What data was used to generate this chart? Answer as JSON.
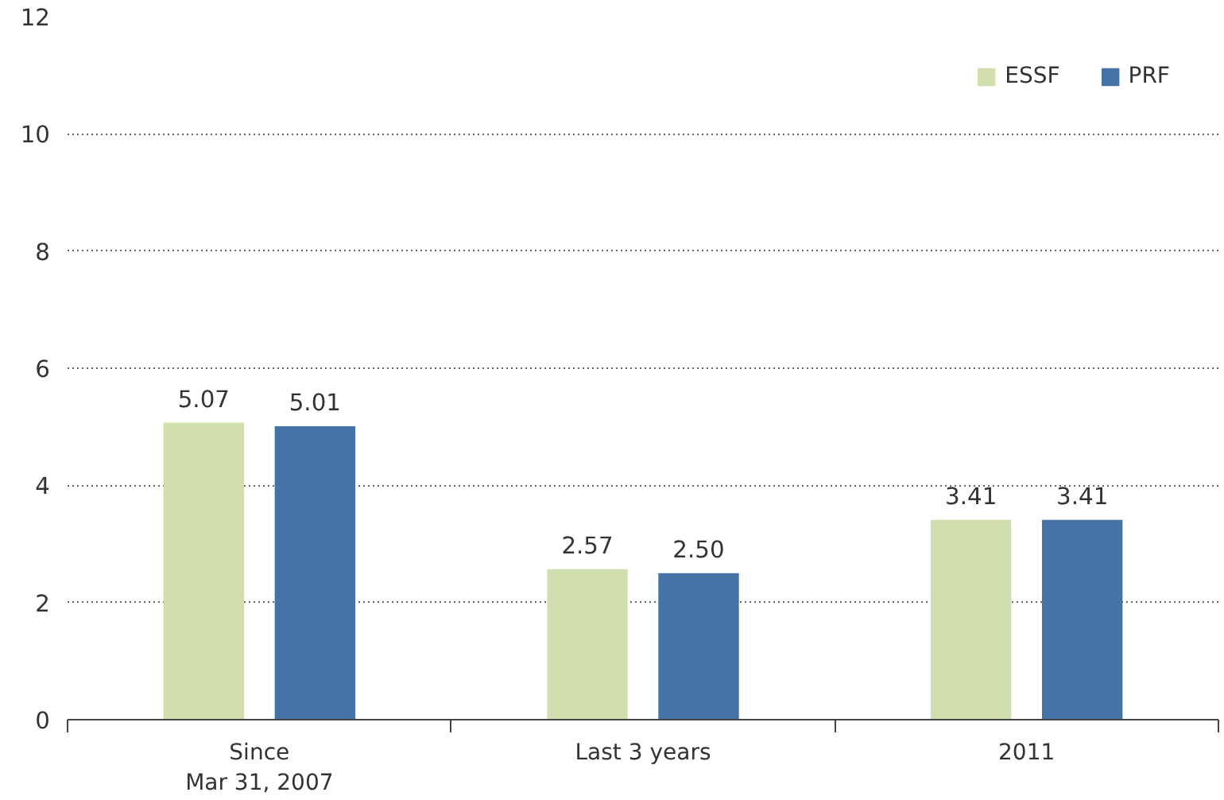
{
  "chart_data": {
    "type": "bar",
    "categories": [
      "Since\nMar 31, 2007",
      "Last 3 years",
      "2011"
    ],
    "series": [
      {
        "name": "ESSF",
        "color": "#d1deae",
        "values": [
          5.07,
          2.57,
          3.41
        ],
        "value_labels": [
          "5.07",
          "2.57",
          "3.41"
        ]
      },
      {
        "name": "PRF",
        "color": "#4673a6",
        "values": [
          5.01,
          2.5,
          3.41
        ],
        "value_labels": [
          "5.01",
          "2.50",
          "3.41"
        ]
      }
    ],
    "ylim": [
      0,
      12
    ],
    "yticks": [
      0,
      2,
      4,
      6,
      8,
      10,
      12
    ],
    "grid": "y",
    "legend": "top right"
  }
}
